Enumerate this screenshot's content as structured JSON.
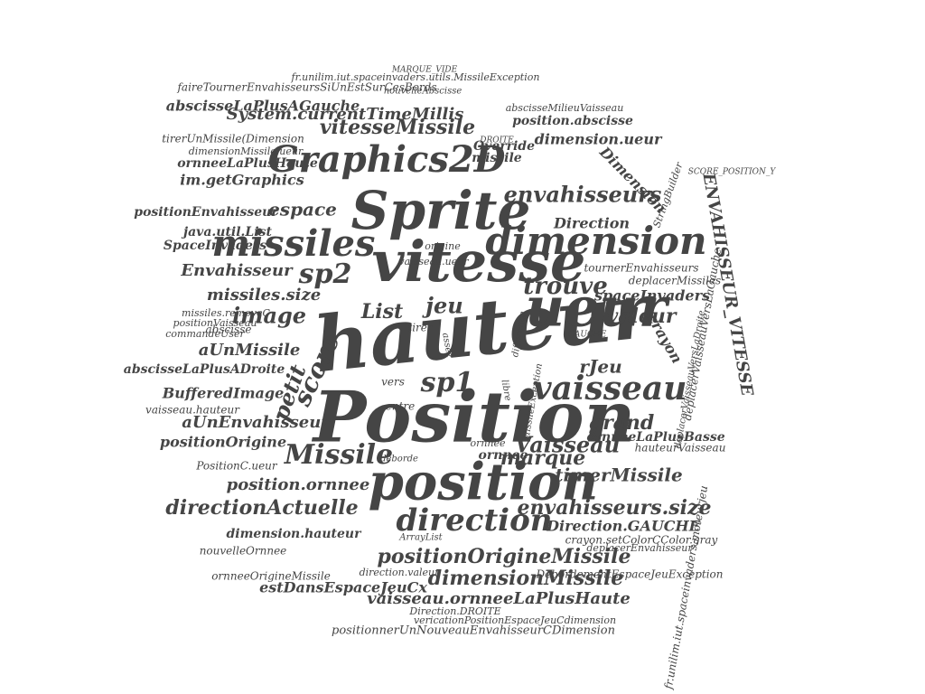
{
  "word_cloud": {
    "words": [
      "Position",
      "hauteur",
      "vitesse",
      "position",
      "Sprite",
      "ueur",
      "dimension",
      "Graphics2D",
      "missiles",
      "vaisseau",
      "direction",
      "Missile",
      "sp2",
      "sp1",
      "envahisseurs",
      "trouve",
      "jeu",
      "image",
      "List",
      "marque",
      "positionOrigineMissile",
      "envahisseurs.size",
      "timerMissile",
      "Vaisseau",
      "grand",
      "dimensionMissile",
      "directionActuelle",
      "valeur",
      "score",
      "petit",
      "espace",
      "Envahisseur",
      "missiles.size",
      "aUnMissile",
      "aUnEnvahisseur",
      "BufferedImage",
      "positionOrigine",
      "position.ornnee",
      "vitesseMissile",
      "im.getGraphics",
      "abscisseLaPlusAGauche",
      "System.currentTimeMillis",
      "dimension.ueur",
      "position.abscisse",
      "ornneeLaPlusHaute",
      "ornneeLaPlusBasse",
      "vaisseau.ornneeLaPlusHaute",
      "estDansEspaceJeuCx",
      "dimension.hauteur",
      "Direction.GAUCHE",
      "abscisseLaPlusADroite",
      "tournerEnvahisseurs",
      "spaceInvaders",
      "deplacerMissiles",
      "Dimension",
      "Direction",
      "vaisseau.hauteur",
      "positionEnvahisseur",
      "crayon",
      "rJeu",
      "ornnee",
      "hauteurVaisseau",
      "deplacerVaisseauVersLaGauche",
      "SpaceInvaders",
      "java.util.List",
      "nouvelleOrnnee",
      "ornneeOrigineMissile",
      "faireTournerEnvahisseursSiUnEstSurCesBords",
      "fr.unilim.iut.spaceinvaders.utils.MissileException",
      "tirerUnMissile(Dimension",
      "dimensionMissile.ueur",
      "positionVaisseau",
      "commandeUser",
      "missiles.removeC",
      "abscisse",
      "vers",
      "entre",
      "deborde",
      "PositionC.ueur",
      "Override",
      "missile",
      "nouvelleAbscisse",
      "abscisseMilieuVaisseau",
      "crayon.setColorCColor.gray",
      "DebordementEspaceJeuException",
      "direction.valeur",
      "Direction.DROITE",
      "positionnerUnNouveauEnvahisseurCDimension",
      "vericationPositionEspaceJeuCdimension",
      "ArrayList",
      "deplacerEnvahisseur",
      "fr.unilim.iut.spaceinvaders.moteurjeu",
      "ENVAHISSEUR_VITESSE",
      "StringBuilder",
      "deplacerVaisseauVersLaDroite",
      "difference",
      "MissileException",
      "tirer",
      "origine",
      "vaisseau.ueur",
      "ornnee",
      "MARQUE_VIDE",
      "SCORE_POSITION_Y",
      "GAUCHE",
      "DROITE",
      "assez",
      "libre"
    ]
  },
  "colors": {
    "background": "#ffffff",
    "word": "#454545"
  }
}
